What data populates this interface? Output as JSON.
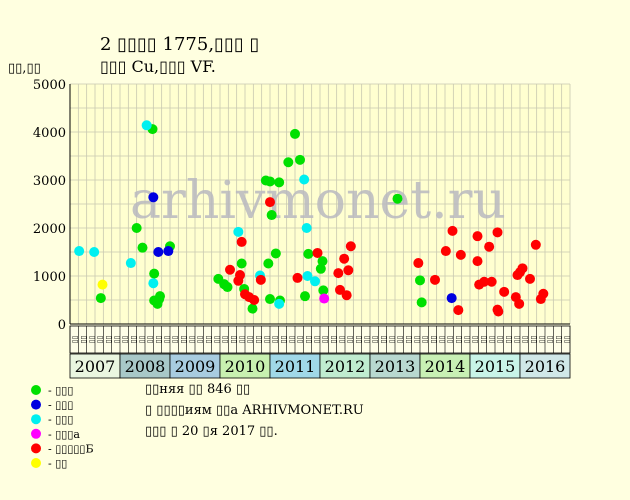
{
  "chart_data": {
    "type": "scatter",
    "title": "2 ▯▯▯▯ 1775,▯▯▯ ▯",
    "subtitle": "▯▯▯ Cu,▯▯▯ VF.",
    "ylabel": "▯▯,▯▯",
    "ylim": [
      0,
      5000
    ],
    "yticks": [
      0,
      1000,
      2000,
      3000,
      4000,
      5000
    ],
    "watermark": "arhivmonet.ru",
    "years": [
      "2007",
      "2008",
      "2009",
      "2010",
      "2011",
      "2012",
      "2013",
      "2014",
      "2015",
      "2016"
    ],
    "year_colors": [
      "#eaf6e0",
      "#a8c8c8",
      "#a8cce0",
      "#c8f0b0",
      "#a0d8e8",
      "#c0ecd0",
      "#b8d8d0",
      "#c8f0b4",
      "#c8f4e8",
      "#d0e8e8"
    ],
    "months": [
      "▯▯",
      "▯▯",
      "▯▯",
      "▯▯",
      "▯▯",
      "▯▯",
      "▯▯",
      "▯▯",
      "▯▯",
      "▯▯",
      "▯▯",
      "▯▯",
      "▯▯",
      "▯▯",
      "▯▯",
      "▯▯",
      "▯▯",
      "▯▯",
      "▯▯",
      "▯▯",
      "▯▯",
      "▯▯",
      "▯▯",
      "▯▯",
      "▯▯",
      "▯▯",
      "▯▯",
      "▯▯",
      "▯▯",
      "▯▯",
      "▯▯",
      "▯▯",
      "▯▯",
      "▯▯",
      "▯▯",
      "▯▯",
      "▯▯",
      "▯▯",
      "▯▯",
      "▯▯",
      "▯▯",
      "▯▯",
      "▯▯",
      "▯▯",
      "▯▯",
      "▯▯",
      "▯▯",
      "▯▯",
      "▯▯",
      "▯▯",
      "▯▯",
      "▯▯",
      "▯▯",
      "▯▯",
      "▯▯",
      "▯▯",
      "▯▯",
      "▯▯",
      "▯▯",
      "▯▯"
    ],
    "month_label": "▯▯",
    "x_unit": "month index (0 = first column of 2007, 6 columns per year)",
    "legend": [
      {
        "name": "- ▯▯▯",
        "color": "#00e000"
      },
      {
        "name": "- ▯▯▯",
        "color": "#0000e0"
      },
      {
        "name": "- ▯▯▯",
        "color": "#00f0f0"
      },
      {
        "name": "- ▯▯▯а",
        "color": "#ff00ff"
      },
      {
        "name": "- ▯▯▯▯▯Б",
        "color": "#ff0000"
      },
      {
        "name": "- ▯▯",
        "color": "#ffff00"
      }
    ],
    "notes": [
      "▯▯няя ▯▯ 846 ▯▯",
      "▯ ▯▯▯▯иям ▯▯а ARHIVMONET.RU",
      "▯▯▯ ▯ 20 ▯я 2017 ▯▯."
    ],
    "series": [
      {
        "name": "- ▯▯▯",
        "color": "#00e000",
        "points": [
          [
            3.2,
            540
          ],
          [
            7.5,
            2000
          ],
          [
            8.2,
            1590
          ],
          [
            9.4,
            4060
          ],
          [
            9.6,
            1050
          ],
          [
            9.6,
            490
          ],
          [
            10.0,
            420
          ],
          [
            10.2,
            520
          ],
          [
            10.3,
            580
          ],
          [
            11.5,
            1620
          ],
          [
            17.3,
            940
          ],
          [
            18.0,
            830
          ],
          [
            18.4,
            770
          ],
          [
            20.1,
            1260
          ],
          [
            20.4,
            730
          ],
          [
            21.4,
            320
          ],
          [
            23.0,
            2990
          ],
          [
            23.3,
            1260
          ],
          [
            23.5,
            520
          ],
          [
            23.5,
            2970
          ],
          [
            23.7,
            2270
          ],
          [
            24.2,
            1470
          ],
          [
            24.6,
            2950
          ],
          [
            24.7,
            490
          ],
          [
            25.7,
            3370
          ],
          [
            26.5,
            3960
          ],
          [
            27.1,
            3420
          ],
          [
            27.7,
            580
          ],
          [
            28.1,
            1460
          ],
          [
            29.6,
            1150
          ],
          [
            29.8,
            1310
          ],
          [
            29.9,
            700
          ],
          [
            38.8,
            2610
          ],
          [
            41.5,
            910
          ],
          [
            41.7,
            450
          ]
        ]
      },
      {
        "name": "- ▯▯▯",
        "color": "#0000e0",
        "points": [
          [
            9.5,
            2640
          ],
          [
            10.1,
            1500
          ],
          [
            11.3,
            1520
          ],
          [
            45.3,
            540
          ]
        ]
      },
      {
        "name": "- ▯▯▯",
        "color": "#00f0f0",
        "points": [
          [
            0.6,
            1520
          ],
          [
            2.4,
            1500
          ],
          [
            6.8,
            1270
          ],
          [
            8.7,
            4140
          ],
          [
            9.5,
            850
          ],
          [
            19.7,
            1920
          ],
          [
            22.3,
            1010
          ],
          [
            24.6,
            420
          ],
          [
            27.6,
            3010
          ],
          [
            27.9,
            2000
          ],
          [
            28.0,
            1000
          ],
          [
            28.9,
            890
          ]
        ]
      },
      {
        "name": "- ▯▯▯а",
        "color": "#ff00ff",
        "points": [
          [
            30.0,
            530
          ]
        ]
      },
      {
        "name": "- ▯▯▯▯▯Б",
        "color": "#ff0000",
        "points": [
          [
            18.7,
            1130
          ],
          [
            19.7,
            900
          ],
          [
            19.9,
            1020
          ],
          [
            20.1,
            1710
          ],
          [
            20.5,
            620
          ],
          [
            21.0,
            560
          ],
          [
            21.6,
            500
          ],
          [
            22.4,
            920
          ],
          [
            23.5,
            2540
          ],
          [
            26.8,
            960
          ],
          [
            29.2,
            1480
          ],
          [
            31.7,
            1060
          ],
          [
            31.9,
            710
          ],
          [
            32.4,
            1360
          ],
          [
            32.7,
            600
          ],
          [
            32.9,
            1120
          ],
          [
            33.2,
            1620
          ],
          [
            41.3,
            1270
          ],
          [
            43.3,
            920
          ],
          [
            44.6,
            1520
          ],
          [
            45.4,
            1940
          ],
          [
            46.1,
            290
          ],
          [
            46.4,
            1440
          ],
          [
            48.4,
            1830
          ],
          [
            48.4,
            1310
          ],
          [
            48.6,
            820
          ],
          [
            49.2,
            880
          ],
          [
            49.8,
            1610
          ],
          [
            50.1,
            880
          ],
          [
            50.8,
            1910
          ],
          [
            50.8,
            300
          ],
          [
            50.9,
            260
          ],
          [
            51.6,
            670
          ],
          [
            53.0,
            560
          ],
          [
            53.2,
            1020
          ],
          [
            53.4,
            420
          ],
          [
            53.5,
            1080
          ],
          [
            53.8,
            1160
          ],
          [
            54.7,
            940
          ],
          [
            55.4,
            1650
          ],
          [
            56.0,
            520
          ],
          [
            56.3,
            630
          ]
        ]
      },
      {
        "name": "- ▯▯",
        "color": "#ffff00",
        "points": [
          [
            3.4,
            820
          ]
        ]
      }
    ]
  }
}
